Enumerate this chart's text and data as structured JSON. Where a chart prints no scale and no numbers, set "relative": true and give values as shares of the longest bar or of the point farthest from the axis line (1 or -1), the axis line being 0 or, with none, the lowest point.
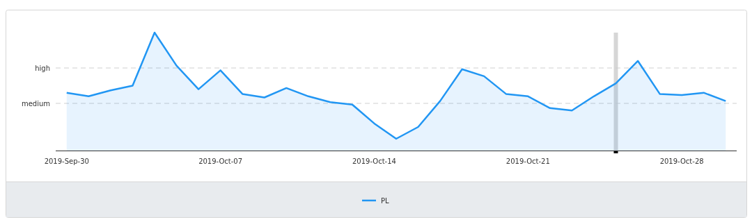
{
  "chart_data": {
    "type": "area",
    "x": [
      "2019-09-30",
      "2019-10-01",
      "2019-10-02",
      "2019-10-03",
      "2019-10-04",
      "2019-10-05",
      "2019-10-06",
      "2019-10-07",
      "2019-10-08",
      "2019-10-09",
      "2019-10-10",
      "2019-10-11",
      "2019-10-12",
      "2019-10-13",
      "2019-10-14",
      "2019-10-15",
      "2019-10-16",
      "2019-10-17",
      "2019-10-18",
      "2019-10-19",
      "2019-10-20",
      "2019-10-21",
      "2019-10-22",
      "2019-10-23",
      "2019-10-24",
      "2019-10-25",
      "2019-10-26",
      "2019-10-27",
      "2019-10-28",
      "2019-10-29",
      "2019-10-30"
    ],
    "series": [
      {
        "name": "PL",
        "color": "#2196f3",
        "values": [
          0.49,
          0.46,
          0.51,
          0.55,
          1.0,
          0.72,
          0.52,
          0.68,
          0.48,
          0.45,
          0.53,
          0.46,
          0.41,
          0.39,
          0.23,
          0.1,
          0.2,
          0.42,
          0.69,
          0.63,
          0.48,
          0.46,
          0.36,
          0.34,
          0.46,
          0.57,
          0.76,
          0.48,
          0.47,
          0.49,
          0.42
        ]
      }
    ],
    "xlim": [
      "2019-09-29T12:00",
      "2019-10-30T12:00"
    ],
    "xticks": [
      {
        "value": "2019-09-30",
        "label": "2019-Sep-30"
      },
      {
        "value": "2019-10-07",
        "label": "2019-Oct-07"
      },
      {
        "value": "2019-10-14",
        "label": "2019-Oct-14"
      },
      {
        "value": "2019-10-21",
        "label": "2019-Oct-21"
      },
      {
        "value": "2019-10-28",
        "label": "2019-Oct-28"
      }
    ],
    "relative": true,
    "legend": "bottom",
    "ref_lines": [
      {
        "axis": "y",
        "value": 0.4,
        "label": "medium",
        "color": "#cfcfcf",
        "line_style": "dashed"
      },
      {
        "axis": "y",
        "value": 0.7,
        "label": "high",
        "color": "#cfcfcf",
        "line_style": "dashed"
      },
      {
        "axis": "x",
        "value": "2019-10-25",
        "color": "#cccccc"
      }
    ]
  }
}
